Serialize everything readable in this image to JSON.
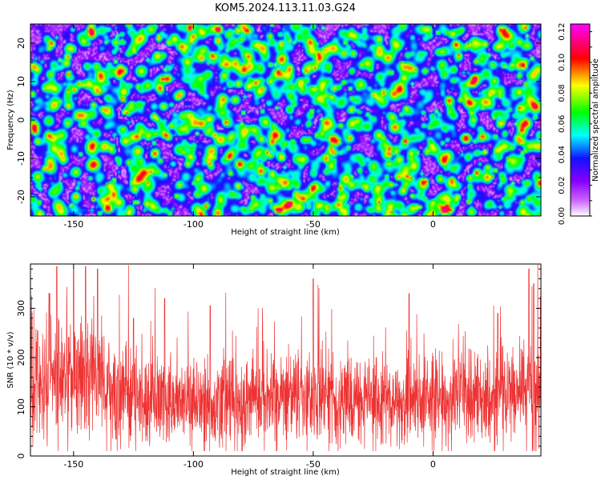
{
  "figure": {
    "title": "KOM5.2024.113.11.03.G24"
  },
  "chart_data": [
    {
      "type": "heatmap",
      "title": "KOM5.2024.113.11.03.G24",
      "xlabel": "Height of straight line (km)",
      "ylabel": "Frequency (Hz)",
      "xlim": [
        -168,
        45
      ],
      "ylim": [
        -25,
        25
      ],
      "x_ticks": [
        -150,
        -100,
        -50,
        0
      ],
      "y_ticks": [
        -20,
        -10,
        0,
        10,
        20
      ],
      "colorbar": {
        "label": "Normalized spectral amplitude",
        "range": [
          0.0,
          0.125
        ],
        "ticks": [
          0.0,
          0.02,
          0.04,
          0.06,
          0.08,
          0.1,
          0.12
        ],
        "colormap": [
          "#ffffff",
          "#cc66ff",
          "#8800ff",
          "#1111ff",
          "#00ffff",
          "#00ff00",
          "#ffff00",
          "#ff0000",
          "#ff00ff"
        ]
      },
      "grid": false
    },
    {
      "type": "line",
      "xlabel": "Height of straight line (km)",
      "ylabel": "SNR (10 * v/v)",
      "xlim": [
        -168,
        45
      ],
      "ylim": [
        0,
        390
      ],
      "x_ticks": [
        -150,
        -100,
        -50,
        0
      ],
      "y_ticks": [
        0,
        100,
        200,
        300
      ],
      "series": [
        {
          "color": "#ee3333",
          "x_step": 0.1,
          "baseline_by_x": [
            [
              -168,
              140
            ],
            [
              -150,
              160
            ],
            [
              -140,
              155
            ],
            [
              -130,
              120
            ],
            [
              -100,
              105
            ],
            [
              -60,
              125
            ],
            [
              -40,
              115
            ],
            [
              -20,
              110
            ],
            [
              20,
              120
            ],
            [
              45,
              130
            ]
          ],
          "envelope_peaks": [
            [
              -165,
              255
            ],
            [
              -160,
              330
            ],
            [
              -157,
              385
            ],
            [
              -150,
              380
            ],
            [
              -145,
              385
            ],
            [
              -140,
              380
            ],
            [
              -125,
              280
            ],
            [
              -112,
              320
            ],
            [
              -93,
              305
            ],
            [
              -50,
              360
            ],
            [
              -10,
              330
            ],
            [
              27,
              290
            ],
            [
              40,
              380
            ],
            [
              42,
              350
            ]
          ],
          "typical_range": [
            20,
            320
          ]
        }
      ]
    }
  ]
}
